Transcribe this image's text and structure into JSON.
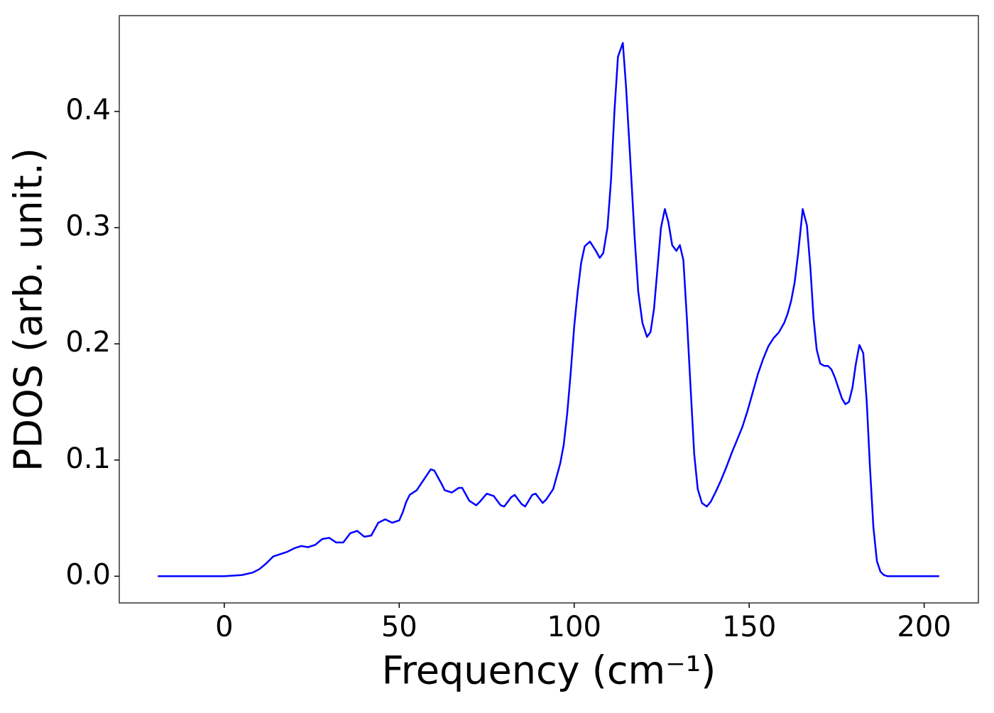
{
  "chart_data": {
    "type": "line",
    "xlabel": "Frequency (cm⁻¹)",
    "ylabel": "PDOS (arb. unit.)",
    "x": [
      -19,
      0,
      5,
      8,
      10,
      12,
      14,
      16,
      18,
      20,
      22,
      24,
      26,
      28,
      30,
      32,
      34,
      36,
      38,
      40,
      42,
      44,
      46,
      48,
      50,
      51,
      52,
      53,
      55,
      57,
      59,
      60,
      62,
      63,
      65,
      67,
      68,
      70,
      72,
      73,
      75,
      77,
      79,
      80,
      82,
      83,
      85,
      86,
      88,
      89,
      91,
      92,
      94,
      96,
      97,
      98,
      99,
      100,
      101,
      102,
      103,
      104.5,
      106,
      107.3,
      108.3,
      109.5,
      110.5,
      111.5,
      112.5,
      113.9,
      114.8,
      116,
      117.3,
      118.3,
      119.5,
      120.8,
      121.8,
      122.8,
      123.8,
      124.8,
      125.9,
      126.9,
      128,
      129.2,
      130.2,
      131.2,
      132.2,
      133.3,
      134.3,
      135.3,
      136.5,
      137.9,
      139,
      140.5,
      142,
      143.5,
      145,
      146.5,
      148,
      149.5,
      151,
      152.5,
      154,
      155.5,
      157,
      158.5,
      160,
      161,
      162,
      163,
      164,
      165.3,
      166.5,
      167.5,
      168.4,
      169.3,
      170.3,
      171.5,
      172.5,
      173.5,
      174.5,
      175.5,
      176.5,
      177.5,
      178.5,
      179.5,
      180.5,
      181.5,
      182.6,
      183.6,
      184.5,
      185.5,
      186.5,
      187.5,
      188.5,
      189.5,
      191,
      204.3
    ],
    "series": [
      {
        "color": "#0000ff",
        "values": [
          0,
          0,
          0.001,
          0.003,
          0.006,
          0.011,
          0.017,
          0.019,
          0.021,
          0.024,
          0.026,
          0.025,
          0.027,
          0.032,
          0.033,
          0.029,
          0.029,
          0.037,
          0.039,
          0.034,
          0.035,
          0.046,
          0.049,
          0.046,
          0.048,
          0.055,
          0.064,
          0.07,
          0.074,
          0.083,
          0.092,
          0.091,
          0.08,
          0.074,
          0.072,
          0.076,
          0.076,
          0.065,
          0.061,
          0.064,
          0.071,
          0.069,
          0.061,
          0.06,
          0.068,
          0.07,
          0.062,
          0.06,
          0.07,
          0.071,
          0.063,
          0.066,
          0.075,
          0.097,
          0.113,
          0.14,
          0.175,
          0.215,
          0.245,
          0.27,
          0.284,
          0.288,
          0.281,
          0.274,
          0.278,
          0.3,
          0.34,
          0.4,
          0.447,
          0.459,
          0.422,
          0.36,
          0.29,
          0.245,
          0.218,
          0.206,
          0.21,
          0.23,
          0.265,
          0.3,
          0.316,
          0.305,
          0.285,
          0.28,
          0.285,
          0.272,
          0.222,
          0.16,
          0.105,
          0.075,
          0.063,
          0.06,
          0.064,
          0.073,
          0.083,
          0.094,
          0.106,
          0.117,
          0.128,
          0.142,
          0.158,
          0.174,
          0.187,
          0.198,
          0.205,
          0.21,
          0.218,
          0.226,
          0.237,
          0.253,
          0.278,
          0.316,
          0.302,
          0.265,
          0.222,
          0.195,
          0.183,
          0.181,
          0.181,
          0.178,
          0.171,
          0.162,
          0.153,
          0.148,
          0.15,
          0.162,
          0.183,
          0.199,
          0.192,
          0.15,
          0.095,
          0.042,
          0.013,
          0.004,
          0.001,
          0,
          0,
          0
        ]
      }
    ],
    "xlim": [
      -30,
      215.5
    ],
    "ylim": [
      -0.023,
      0.4825
    ],
    "xticks": [
      0,
      50,
      100,
      150,
      200
    ],
    "yticks": [
      {
        "value": 0,
        "label": "0.0"
      },
      0.1,
      0.2,
      0.3,
      0.4
    ],
    "grid": false
  }
}
